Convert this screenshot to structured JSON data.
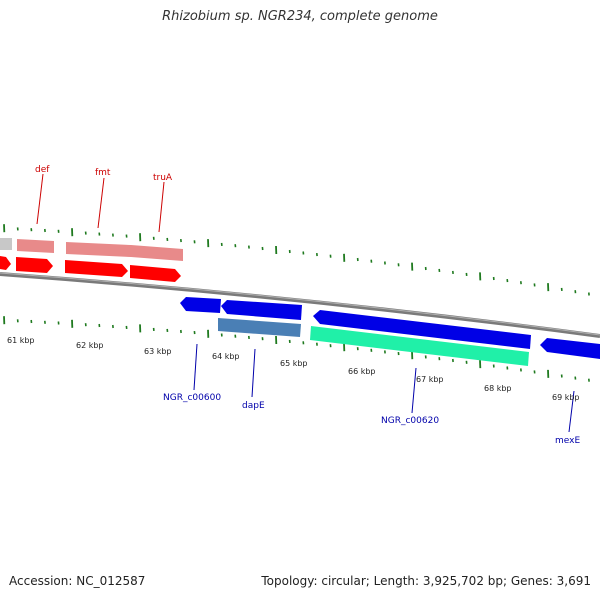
{
  "title": "Rhizobium sp. NGR234, complete genome",
  "footer": {
    "accession": "Accession: NC_012587",
    "summary": "Topology: circular; Length: 3,925,702 bp; Genes: 3,691"
  },
  "colors": {
    "backbone": "#7a7a7a",
    "tick": "#1f7a1f",
    "forward_label": "#cc0000",
    "reverse_label": "#0000aa",
    "feature_red": "#ff0000",
    "feature_pink": "#e88a8a",
    "feature_blue": "#0000e6",
    "feature_steel": "#4a7fb5",
    "feature_teal": "#20f0a8",
    "feature_grey": "#c8c8c8"
  },
  "kbp_labels": [
    "61 kbp",
    "62 kbp",
    "63 kbp",
    "64 kbp",
    "65 kbp",
    "66 kbp",
    "67 kbp",
    "68 kbp",
    "69 kbp"
  ],
  "forward_gene_labels": [
    "def",
    "fmt",
    "truA"
  ],
  "reverse_gene_labels": [
    "NGR_c00600",
    "dapE",
    "NGR_c00620",
    "mexE"
  ]
}
